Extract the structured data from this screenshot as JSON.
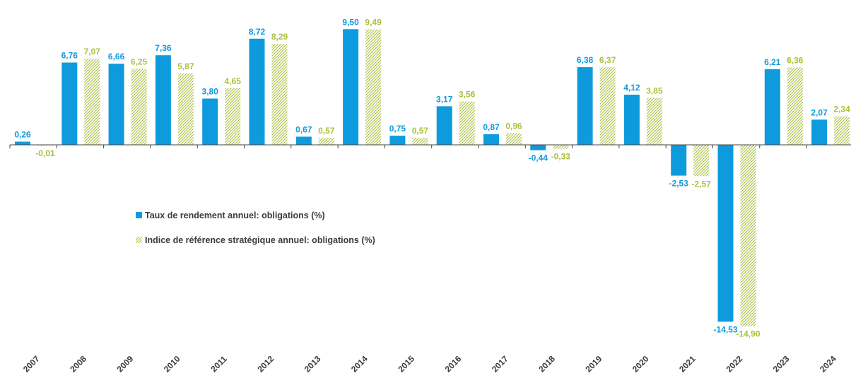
{
  "colors": {
    "series1": "#0e9bde",
    "series2": "#a9c23f",
    "axis": "#444444",
    "tick_text": "#3b3b3b"
  },
  "chart_data": {
    "type": "bar",
    "categories": [
      "2007",
      "2008",
      "2009",
      "2010",
      "2011",
      "2012",
      "2013",
      "2014",
      "2015",
      "2016",
      "2017",
      "2018",
      "2019",
      "2020",
      "2021",
      "2022",
      "2023",
      "2024"
    ],
    "series": [
      {
        "name": "Taux de rendement annuel: obligations (%)",
        "fill": "solid",
        "values": [
          0.26,
          6.76,
          6.66,
          7.36,
          3.8,
          8.72,
          0.67,
          9.5,
          0.75,
          3.17,
          0.87,
          -0.44,
          6.38,
          4.12,
          -2.53,
          -14.53,
          6.21,
          2.07
        ],
        "labels": [
          "0,26",
          "6,76",
          "6,66",
          "7,36",
          "3,80",
          "8,72",
          "0,67",
          "9,50",
          "0,75",
          "3,17",
          "0,87",
          "-0,44",
          "6,38",
          "4,12",
          "-2,53",
          "-14,53",
          "6,21",
          "2,07"
        ]
      },
      {
        "name": "Indice de référence stratégique annuel: obligations (%)",
        "fill": "hatched",
        "values": [
          -0.01,
          7.07,
          6.25,
          5.87,
          4.65,
          8.29,
          0.57,
          9.49,
          0.57,
          3.56,
          0.96,
          -0.33,
          6.37,
          3.85,
          -2.57,
          -14.9,
          6.36,
          2.34
        ],
        "labels": [
          "-0,01",
          "7,07",
          "6,25",
          "5,87",
          "4,65",
          "8,29",
          "0,57",
          "9,49",
          "0,57",
          "3,56",
          "0,96",
          "-0,33",
          "6,37",
          "3,85",
          "-2,57",
          "-14,90",
          "6,36",
          "2,34"
        ]
      }
    ],
    "ylim": [
      -14.9,
      9.5
    ],
    "grid": false,
    "legend_position": "center-left, below axis",
    "xlabel": "",
    "ylabel": ""
  }
}
